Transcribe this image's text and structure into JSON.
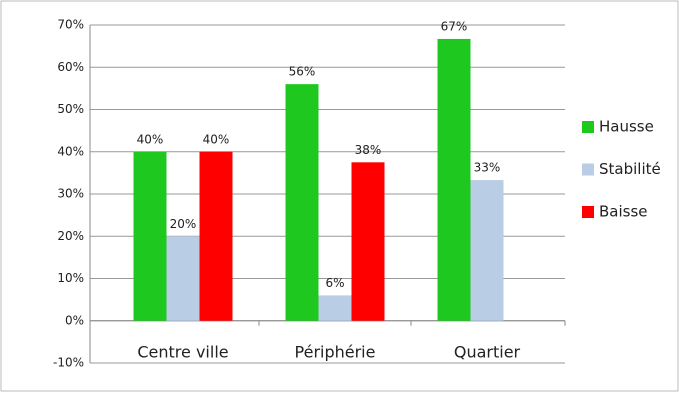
{
  "chart_data": {
    "type": "bar",
    "categories": [
      "Centre ville",
      "Périphérie",
      "Quartier"
    ],
    "series": [
      {
        "name": "Hausse",
        "color": "#1ec81e",
        "values": [
          40,
          56,
          66.7
        ],
        "value_labels": [
          "40%",
          "56%",
          "67%"
        ]
      },
      {
        "name": "Stabilité",
        "color": "#b9cde5",
        "values": [
          20,
          6,
          33.3
        ],
        "value_labels": [
          "20%",
          "6%",
          "33%"
        ]
      },
      {
        "name": "Baisse",
        "color": "#ff0000",
        "values": [
          40,
          37.5,
          null
        ],
        "value_labels": [
          "40%",
          "38%",
          null
        ]
      }
    ],
    "ylim": [
      -10,
      70
    ],
    "yticks": [
      {
        "value": -10,
        "label": "-10%"
      },
      {
        "value": 0,
        "label": "0%"
      },
      {
        "value": 10,
        "label": "10%"
      },
      {
        "value": 20,
        "label": "20%"
      },
      {
        "value": 30,
        "label": "30%"
      },
      {
        "value": 40,
        "label": "40%"
      },
      {
        "value": 50,
        "label": "50%"
      },
      {
        "value": 60,
        "label": "60%"
      },
      {
        "value": 70,
        "label": "70%"
      }
    ],
    "grid": true,
    "legend": "right"
  }
}
